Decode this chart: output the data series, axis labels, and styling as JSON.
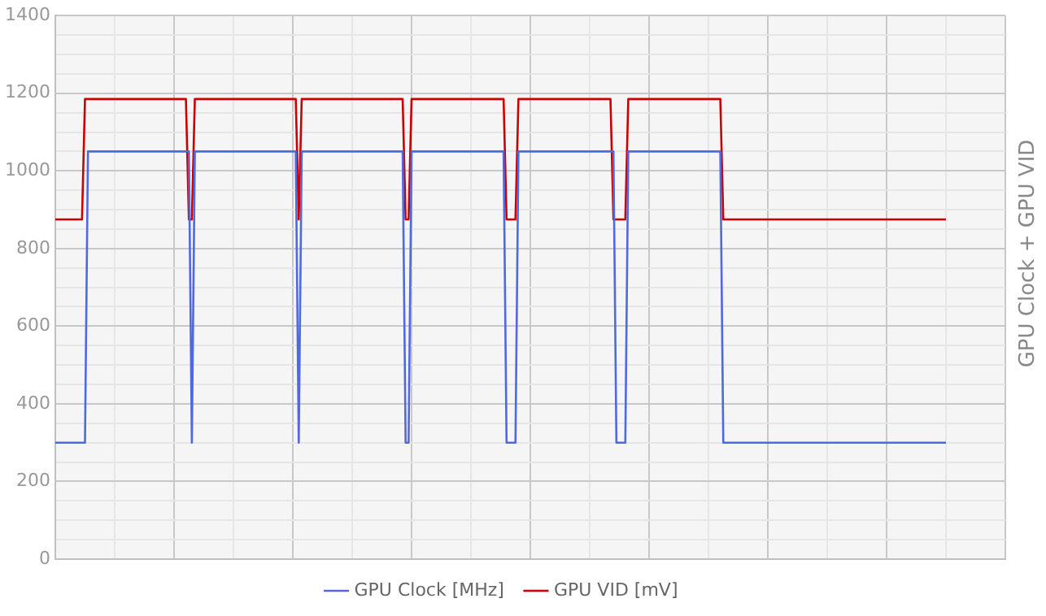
{
  "chart_data": {
    "type": "line",
    "title": "GPU Clock + GPU VID",
    "ylim": [
      0,
      1400
    ],
    "categories": [
      null,
      null,
      null,
      null,
      null,
      null,
      null,
      null,
      null,
      null,
      null,
      null,
      null,
      null,
      null,
      null,
      null,
      null,
      null,
      null,
      null,
      null,
      null,
      null,
      null,
      null,
      null,
      null,
      null,
      null,
      null,
      null,
      null,
      null,
      null,
      null,
      null,
      null,
      null,
      null,
      null,
      null,
      null,
      null,
      null,
      null,
      null,
      null,
      null,
      null,
      null,
      null,
      null,
      null,
      null,
      null,
      null,
      null,
      null,
      null,
      null,
      null,
      null,
      null,
      null,
      null,
      null,
      null,
      null,
      null,
      null,
      null,
      null,
      null,
      null,
      null,
      null,
      null,
      null,
      null,
      null,
      null,
      null,
      null,
      null,
      null,
      null,
      null,
      null,
      null,
      null,
      null,
      null,
      null,
      null,
      null,
      null,
      null,
      null,
      null,
      null,
      null,
      null,
      null,
      null,
      null,
      null,
      null,
      null,
      null,
      null,
      null,
      null,
      null,
      null,
      null,
      null,
      null,
      null,
      null,
      null,
      null,
      null,
      null,
      null,
      null,
      null,
      null,
      null,
      null,
      null,
      null,
      null,
      null,
      null,
      null,
      null,
      null,
      null,
      null,
      null,
      null,
      null,
      null,
      null,
      null,
      null,
      null,
      null,
      null,
      null,
      null,
      null,
      null,
      null,
      null,
      null,
      null,
      null,
      null,
      null,
      null,
      null,
      null,
      null,
      null,
      null,
      null,
      null,
      null,
      null,
      null,
      null,
      null,
      null,
      null,
      null,
      null,
      null,
      null,
      null,
      null,
      null,
      null,
      null,
      null,
      null,
      null,
      null,
      null,
      null,
      null,
      null,
      null,
      null,
      null,
      null,
      null,
      null,
      null,
      null,
      null,
      null,
      null,
      null,
      null,
      null,
      null,
      null,
      null,
      null,
      null,
      null,
      null,
      null,
      null,
      null,
      null,
      null,
      null,
      null,
      null,
      null,
      null,
      null,
      null,
      null,
      null,
      null,
      null,
      null,
      null,
      null,
      null,
      null,
      null,
      null,
      null,
      null,
      null,
      null,
      null,
      null,
      null,
      null,
      null,
      null,
      null,
      null,
      null,
      null,
      null,
      null,
      null,
      null,
      null,
      null,
      null,
      null,
      null,
      null,
      null,
      null,
      null,
      null,
      null,
      null,
      null,
      null,
      null,
      null,
      null,
      null,
      null,
      null,
      null,
      null,
      null,
      null,
      null,
      null,
      null,
      null,
      null,
      null,
      null,
      null,
      null,
      null,
      null,
      null,
      null,
      null,
      null,
      null,
      null,
      null,
      null,
      null,
      null,
      null,
      null,
      null,
      null,
      null,
      null,
      null,
      null,
      null,
      null,
      null,
      null,
      null,
      null,
      null,
      null,
      null,
      null,
      null,
      null,
      null
    ],
    "yticks": [
      0,
      {
        "value": 50,
        "label": null
      },
      {
        "value": 100,
        "label": null
      },
      {
        "value": 150,
        "label": null
      },
      200,
      {
        "value": 250,
        "label": null
      },
      {
        "value": 300,
        "label": null
      },
      {
        "value": 350,
        "label": null
      },
      400,
      {
        "value": 450,
        "label": null
      },
      {
        "value": 500,
        "label": null
      },
      {
        "value": 550,
        "label": null
      },
      600,
      {
        "value": 650,
        "label": null
      },
      {
        "value": 700,
        "label": null
      },
      {
        "value": 750,
        "label": null
      },
      800,
      {
        "value": 850,
        "label": null
      },
      {
        "value": 900,
        "label": null
      },
      {
        "value": 950,
        "label": null
      },
      1000,
      {
        "value": 1050,
        "label": null
      },
      {
        "value": 1100,
        "label": null
      },
      {
        "value": 1150,
        "label": null
      },
      1200,
      {
        "value": 1250,
        "label": null
      },
      {
        "value": 1300,
        "label": null
      },
      {
        "value": 1350,
        "label": null
      },
      1400
    ],
    "tick_labels": "y",
    "grid": true,
    "legend": "bottom",
    "marker": "none",
    "line_style": "solid",
    "series": [
      {
        "name": "GPU Clock [MHz]",
        "color": "#5068e0",
        "values": [
          300,
          300,
          300,
          300,
          300,
          300,
          300,
          300,
          300,
          300,
          300,
          1050,
          1050,
          1050,
          1050,
          1050,
          1050,
          1050,
          1050,
          1050,
          1050,
          1050,
          1050,
          1050,
          1050,
          1050,
          1050,
          1050,
          1050,
          1050,
          1050,
          1050,
          1050,
          1050,
          1050,
          1050,
          1050,
          1050,
          1050,
          1050,
          1050,
          1050,
          1050,
          1050,
          1050,
          1050,
          300,
          1050,
          1050,
          1050,
          1050,
          1050,
          1050,
          1050,
          1050,
          1050,
          1050,
          1050,
          1050,
          1050,
          1050,
          1050,
          1050,
          1050,
          1050,
          1050,
          1050,
          1050,
          1050,
          1050,
          1050,
          1050,
          1050,
          1050,
          1050,
          1050,
          1050,
          1050,
          1050,
          1050,
          1050,
          1050,
          300,
          1050,
          1050,
          1050,
          1050,
          1050,
          1050,
          1050,
          1050,
          1050,
          1050,
          1050,
          1050,
          1050,
          1050,
          1050,
          1050,
          1050,
          1050,
          1050,
          1050,
          1050,
          1050,
          1050,
          1050,
          1050,
          1050,
          1050,
          1050,
          1050,
          1050,
          1050,
          1050,
          1050,
          1050,
          1050,
          300,
          300,
          1050,
          1050,
          1050,
          1050,
          1050,
          1050,
          1050,
          1050,
          1050,
          1050,
          1050,
          1050,
          1050,
          1050,
          1050,
          1050,
          1050,
          1050,
          1050,
          1050,
          1050,
          1050,
          1050,
          1050,
          1050,
          1050,
          1050,
          1050,
          1050,
          1050,
          1050,
          1050,
          300,
          300,
          300,
          300,
          1050,
          1050,
          1050,
          1050,
          1050,
          1050,
          1050,
          1050,
          1050,
          1050,
          1050,
          1050,
          1050,
          1050,
          1050,
          1050,
          1050,
          1050,
          1050,
          1050,
          1050,
          1050,
          1050,
          1050,
          1050,
          1050,
          1050,
          1050,
          1050,
          1050,
          1050,
          1050,
          1050,
          300,
          300,
          300,
          300,
          1050,
          1050,
          1050,
          1050,
          1050,
          1050,
          1050,
          1050,
          1050,
          1050,
          1050,
          1050,
          1050,
          1050,
          1050,
          1050,
          1050,
          1050,
          1050,
          1050,
          1050,
          1050,
          1050,
          1050,
          1050,
          1050,
          1050,
          1050,
          1050,
          1050,
          1050,
          1050,
          300,
          300,
          300,
          300,
          300,
          300,
          300,
          300,
          300,
          300,
          300,
          300,
          300,
          300,
          300,
          300,
          300,
          300,
          300,
          300,
          300,
          300,
          300,
          300,
          300,
          300,
          300,
          300,
          300,
          300,
          300,
          300,
          300,
          300,
          300,
          300,
          300,
          300,
          300,
          300,
          300,
          300,
          300,
          300,
          300,
          300,
          300,
          300,
          300,
          300,
          300,
          300,
          300,
          300,
          300,
          300,
          300,
          300,
          300,
          300,
          300,
          300,
          300,
          300,
          300,
          300,
          300,
          300,
          300,
          300,
          300,
          300,
          300,
          300,
          300,
          300,
          null,
          null,
          null,
          null,
          null,
          null,
          null,
          null,
          null,
          null,
          null,
          null,
          null,
          null,
          null,
          null,
          null,
          null,
          null,
          null
        ]
      },
      {
        "name": "GPU VID [mV]",
        "color": "#cc0000",
        "values": [
          875,
          875,
          875,
          875,
          875,
          875,
          875,
          875,
          875,
          875,
          1185,
          1185,
          1185,
          1185,
          1185,
          1185,
          1185,
          1185,
          1185,
          1185,
          1185,
          1185,
          1185,
          1185,
          1185,
          1185,
          1185,
          1185,
          1185,
          1185,
          1185,
          1185,
          1185,
          1185,
          1185,
          1185,
          1185,
          1185,
          1185,
          1185,
          1185,
          1185,
          1185,
          1185,
          1185,
          875,
          875,
          1185,
          1185,
          1185,
          1185,
          1185,
          1185,
          1185,
          1185,
          1185,
          1185,
          1185,
          1185,
          1185,
          1185,
          1185,
          1185,
          1185,
          1185,
          1185,
          1185,
          1185,
          1185,
          1185,
          1185,
          1185,
          1185,
          1185,
          1185,
          1185,
          1185,
          1185,
          1185,
          1185,
          1185,
          1185,
          875,
          1185,
          1185,
          1185,
          1185,
          1185,
          1185,
          1185,
          1185,
          1185,
          1185,
          1185,
          1185,
          1185,
          1185,
          1185,
          1185,
          1185,
          1185,
          1185,
          1185,
          1185,
          1185,
          1185,
          1185,
          1185,
          1185,
          1185,
          1185,
          1185,
          1185,
          1185,
          1185,
          1185,
          1185,
          1185,
          875,
          875,
          1185,
          1185,
          1185,
          1185,
          1185,
          1185,
          1185,
          1185,
          1185,
          1185,
          1185,
          1185,
          1185,
          1185,
          1185,
          1185,
          1185,
          1185,
          1185,
          1185,
          1185,
          1185,
          1185,
          1185,
          1185,
          1185,
          1185,
          1185,
          1185,
          1185,
          1185,
          1185,
          875,
          875,
          875,
          875,
          1185,
          1185,
          1185,
          1185,
          1185,
          1185,
          1185,
          1185,
          1185,
          1185,
          1185,
          1185,
          1185,
          1185,
          1185,
          1185,
          1185,
          1185,
          1185,
          1185,
          1185,
          1185,
          1185,
          1185,
          1185,
          1185,
          1185,
          1185,
          1185,
          1185,
          1185,
          1185,
          875,
          875,
          875,
          875,
          875,
          1185,
          1185,
          1185,
          1185,
          1185,
          1185,
          1185,
          1185,
          1185,
          1185,
          1185,
          1185,
          1185,
          1185,
          1185,
          1185,
          1185,
          1185,
          1185,
          1185,
          1185,
          1185,
          1185,
          1185,
          1185,
          1185,
          1185,
          1185,
          1185,
          1185,
          1185,
          1185,
          875,
          875,
          875,
          875,
          875,
          875,
          875,
          875,
          875,
          875,
          875,
          875,
          875,
          875,
          875,
          875,
          875,
          875,
          875,
          875,
          875,
          875,
          875,
          875,
          875,
          875,
          875,
          875,
          875,
          875,
          875,
          875,
          875,
          875,
          875,
          875,
          875,
          875,
          875,
          875,
          875,
          875,
          875,
          875,
          875,
          875,
          875,
          875,
          875,
          875,
          875,
          875,
          875,
          875,
          875,
          875,
          875,
          875,
          875,
          875,
          875,
          875,
          875,
          875,
          875,
          875,
          875,
          875,
          875,
          875,
          875,
          875,
          875,
          875,
          875,
          875,
          null,
          null,
          null,
          null,
          null,
          null,
          null,
          null,
          null,
          null,
          null,
          null,
          null,
          null,
          null,
          null,
          null,
          null,
          null,
          null
        ]
      }
    ]
  }
}
